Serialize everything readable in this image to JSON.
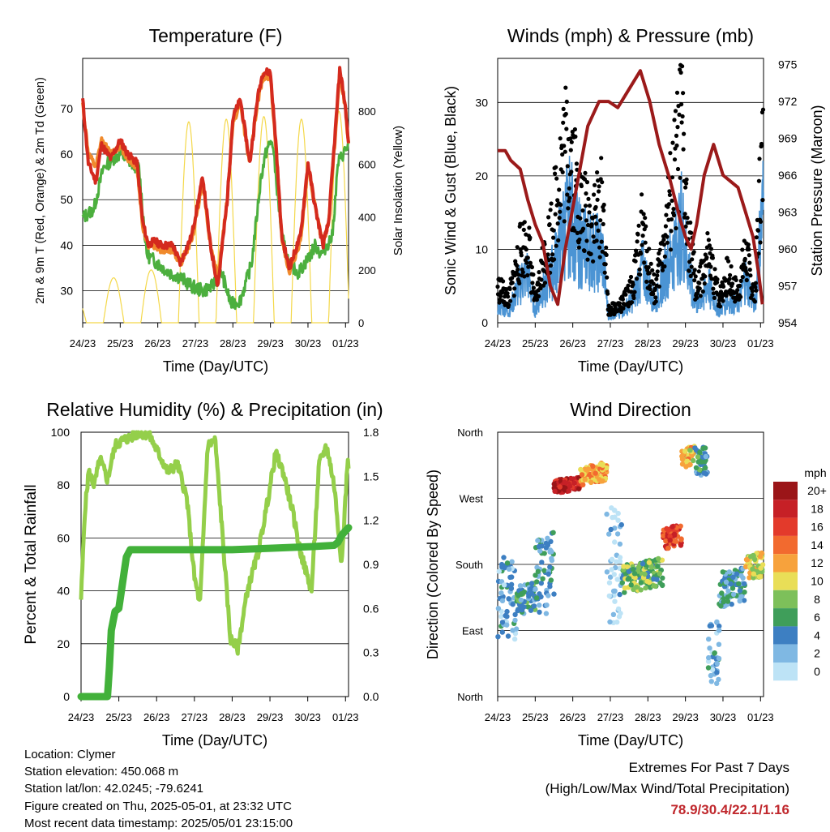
{
  "colors": {
    "temp_2m": "#d42a1e",
    "temp_9m": "#f08a2c",
    "dewpoint": "#4caf3e",
    "solar": "#f4d84a",
    "sonic_wind": "#4b94d4",
    "gust": "#000000",
    "pressure": "#9b1a1a",
    "rh": "#94cf4a",
    "precip": "#42b13a"
  },
  "wind_speed_legend": {
    "title": "mph",
    "labels": [
      "20+",
      "18",
      "16",
      "14",
      "12",
      "10",
      "8",
      "6",
      "4",
      "2",
      "0"
    ],
    "colors": [
      "#9b1518",
      "#c62026",
      "#e33a2b",
      "#f26a2f",
      "#f7a23c",
      "#e9de57",
      "#7dc05a",
      "#3f9e5a",
      "#3d7fc2",
      "#7fb8e3",
      "#bde3f6"
    ]
  },
  "chart_data": [
    {
      "type": "line",
      "title": "Temperature (F)",
      "xlabel": "Time (Day/UTC)",
      "ylabel": "2m & 9m T (Red, Orange) & 2m Td (Green)",
      "y2label": "Solar Insolation (Yellow)",
      "x_ticks": [
        "24/23",
        "25/23",
        "26/23",
        "27/23",
        "28/23",
        "29/23",
        "30/23",
        "01/23"
      ],
      "ylim": [
        23,
        81
      ],
      "y_ticks": [
        30,
        40,
        50,
        60,
        70
      ],
      "y2lim": [
        0,
        1000
      ],
      "y2_ticks": [
        0,
        200,
        400,
        600,
        800
      ],
      "grid": true,
      "series": [
        {
          "name": "2m T",
          "x": [
            0,
            0.15,
            0.35,
            0.5,
            0.75,
            1,
            1.2,
            1.45,
            1.6,
            1.75,
            1.9,
            2.1,
            2.4,
            2.6,
            2.9,
            3.2,
            3.4,
            3.6,
            3.85,
            4,
            4.2,
            4.45,
            4.65,
            4.8,
            5,
            5.15,
            5.3,
            5.5,
            5.8,
            6,
            6.2,
            6.4,
            6.55,
            6.7,
            6.85,
            7,
            7.08
          ],
          "values": [
            72,
            58,
            54,
            62,
            59,
            63,
            60,
            58,
            45,
            40,
            41,
            40,
            40,
            36,
            42,
            55,
            40,
            31,
            50,
            68,
            72,
            58,
            72,
            78,
            78,
            62,
            42,
            35,
            42,
            58,
            48,
            40,
            45,
            62,
            79,
            70,
            62
          ]
        },
        {
          "name": "9m T",
          "x": [
            0,
            0.15,
            0.35,
            0.5,
            0.75,
            1,
            1.2,
            1.45,
            1.6,
            1.75,
            1.9,
            2.1,
            2.4,
            2.6,
            2.9,
            3.2,
            3.4,
            3.6,
            3.85,
            4,
            4.2,
            4.45,
            4.65,
            4.8,
            5,
            5.15,
            5.3,
            5.5,
            5.8,
            6,
            6.2,
            6.4,
            6.55,
            6.7,
            6.85,
            7,
            7.08
          ],
          "values": [
            71,
            60,
            57,
            63,
            60,
            62,
            59,
            57,
            44,
            40,
            40,
            39,
            39,
            36,
            41,
            54,
            40,
            33,
            50,
            67,
            71,
            58,
            71,
            77,
            77,
            61,
            42,
            34,
            41,
            57,
            48,
            40,
            45,
            61,
            78,
            70,
            62
          ]
        },
        {
          "name": "2m Td",
          "x": [
            0,
            0.3,
            0.55,
            0.8,
            1,
            1.3,
            1.5,
            1.7,
            2,
            2.3,
            2.6,
            2.9,
            3.2,
            3.45,
            3.7,
            3.95,
            4.2,
            4.5,
            4.75,
            4.9,
            5.05,
            5.3,
            5.5,
            5.75,
            6,
            6.2,
            6.35,
            6.5,
            6.65,
            6.8,
            7,
            7.08
          ],
          "values": [
            46,
            48,
            57,
            59,
            60,
            58,
            57,
            38,
            36,
            34,
            33,
            31,
            30,
            31,
            34,
            27,
            28,
            36,
            55,
            61,
            63,
            42,
            36,
            34,
            37,
            40,
            38,
            40,
            42,
            58,
            61,
            62
          ]
        }
      ]
    },
    {
      "type": "line",
      "title": "Winds (mph) & Pressure (mb)",
      "xlabel": "Time (Day/UTC)",
      "ylabel": "Sonic Wind & Gust (Blue, Black)",
      "y2label": "Station Pressure (Maroon)",
      "x_ticks": [
        "24/23",
        "25/23",
        "26/23",
        "27/23",
        "28/23",
        "29/23",
        "30/23",
        "01/23"
      ],
      "ylim": [
        0,
        36
      ],
      "y_ticks": [
        0,
        10,
        20,
        30
      ],
      "y2lim": [
        954,
        975.5
      ],
      "y2_ticks": [
        954,
        957,
        960,
        963,
        966,
        969,
        972,
        975
      ],
      "grid": true,
      "series": [
        {
          "name": "Sonic Wind",
          "x": [
            0,
            0.3,
            0.6,
            0.8,
            1,
            1.2,
            1.45,
            1.7,
            1.9,
            2.2,
            2.5,
            2.8,
            2.95,
            3.3,
            3.6,
            3.85,
            4,
            4.2,
            4.4,
            4.7,
            4.9,
            5,
            5.3,
            5.6,
            5.9,
            6.1,
            6.4,
            6.6,
            6.85,
            7,
            7.08
          ],
          "values": [
            3,
            2,
            7,
            9,
            2,
            6,
            9,
            15,
            20,
            14,
            13,
            12,
            1,
            2,
            4,
            10,
            7,
            3,
            8,
            13,
            18,
            13,
            3,
            7,
            2,
            4,
            3,
            8,
            3,
            16,
            21
          ]
        },
        {
          "name": "Gust",
          "x": [
            0,
            0.3,
            0.6,
            0.8,
            1,
            1.2,
            1.45,
            1.7,
            1.9,
            2.2,
            2.5,
            2.8,
            2.95,
            3.3,
            3.6,
            3.85,
            4,
            4.2,
            4.4,
            4.7,
            4.9,
            5,
            5.3,
            5.6,
            5.9,
            6.1,
            6.4,
            6.6,
            6.85,
            7,
            7.08
          ],
          "values": [
            6,
            4,
            12,
            14,
            3,
            10,
            16,
            27,
            31,
            19,
            17,
            20,
            2,
            3,
            6,
            16,
            10,
            5,
            13,
            24,
            33,
            20,
            5,
            11,
            4,
            8,
            5,
            12,
            4,
            25,
            29
          ]
        },
        {
          "name": "Pressure",
          "x": [
            0,
            0.2,
            0.35,
            0.6,
            0.8,
            1,
            1.2,
            1.4,
            1.6,
            1.8,
            2.1,
            2.4,
            2.7,
            2.95,
            3.2,
            3.5,
            3.8,
            4.05,
            4.3,
            4.6,
            4.85,
            5,
            5.15,
            5.3,
            5.5,
            5.75,
            6,
            6.2,
            6.4,
            6.6,
            6.8,
            6.95,
            7.05
          ],
          "values": [
            968,
            968,
            967.2,
            966.5,
            964,
            962,
            960.5,
            957,
            955.5,
            960,
            965,
            970,
            972,
            972,
            971.5,
            973,
            974.5,
            972,
            968.5,
            965.5,
            962.5,
            961,
            960,
            962,
            966,
            968.5,
            966,
            965.5,
            965,
            963,
            961,
            958,
            955.5
          ]
        }
      ]
    },
    {
      "type": "line",
      "title": "Relative Humidity (%) & Precipitation (in)",
      "xlabel": "Time (Day/UTC)",
      "ylabel": "Percent & Total Rainfall",
      "x_ticks": [
        "24/23",
        "25/23",
        "26/23",
        "27/23",
        "28/23",
        "29/23",
        "30/23",
        "01/23"
      ],
      "ylim": [
        0,
        100
      ],
      "y_ticks": [
        0,
        20,
        40,
        60,
        80,
        100
      ],
      "y2lim": [
        0,
        1.8
      ],
      "y2_ticks": [
        "0.0",
        "0.3",
        "0.6",
        "0.9",
        "1.2",
        "1.5",
        "1.8"
      ],
      "grid": true,
      "series": [
        {
          "name": "RH",
          "x": [
            0,
            0.1,
            0.2,
            0.35,
            0.5,
            0.7,
            0.9,
            1.1,
            1.3,
            1.55,
            1.8,
            2.05,
            2.3,
            2.55,
            2.8,
            3,
            3.15,
            3.35,
            3.55,
            3.75,
            3.95,
            4.15,
            4.4,
            4.7,
            4.95,
            5.15,
            5.35,
            5.6,
            5.8,
            6.1,
            6.3,
            6.5,
            6.7,
            6.9,
            7.05
          ],
          "values": [
            37,
            70,
            85,
            80,
            90,
            82,
            95,
            97,
            98,
            100,
            99,
            92,
            85,
            88,
            75,
            45,
            35,
            95,
            97,
            60,
            22,
            18,
            40,
            55,
            75,
            92,
            85,
            70,
            55,
            40,
            88,
            95,
            80,
            50,
            88
          ]
        },
        {
          "name": "Total Rainfall",
          "x": [
            0,
            0.7,
            0.75,
            0.8,
            0.9,
            1,
            1.2,
            1.3,
            1.5,
            2,
            3,
            4,
            5,
            6,
            6.7,
            6.8,
            6.9,
            7.08
          ],
          "values": [
            0,
            0,
            0.2,
            0.45,
            0.58,
            0.6,
            0.95,
            1.0,
            1.0,
            1.0,
            1.0,
            1.0,
            1.01,
            1.02,
            1.03,
            1.05,
            1.1,
            1.15
          ]
        }
      ]
    },
    {
      "type": "scatter",
      "title": "Wind Direction",
      "xlabel": "Time (Day/UTC)",
      "ylabel": "Direction (Colored By Speed)",
      "x_ticks": [
        "24/23",
        "25/23",
        "26/23",
        "27/23",
        "28/23",
        "29/23",
        "30/23",
        "01/23"
      ],
      "y_ticks": [
        "North",
        "East",
        "South",
        "West",
        "North"
      ],
      "ylim": [
        0,
        360
      ],
      "grid": true,
      "clusters": [
        {
          "x_start": 0,
          "x_end": 0.5,
          "dir_center": 130,
          "dir_spread": 120,
          "speed": 3
        },
        {
          "x_start": 0.5,
          "x_end": 1.0,
          "dir_center": 130,
          "dir_spread": 40,
          "speed": 5
        },
        {
          "x_start": 1.0,
          "x_end": 1.5,
          "dir_center": 165,
          "dir_spread": 110,
          "speed": 4
        },
        {
          "x_start": 1.5,
          "x_end": 2.2,
          "dir_center": 285,
          "dir_spread": 18,
          "speed": 18
        },
        {
          "x_start": 2.2,
          "x_end": 2.9,
          "dir_center": 300,
          "dir_spread": 25,
          "speed": 12
        },
        {
          "x_start": 2.9,
          "x_end": 3.3,
          "dir_center": 180,
          "dir_spread": 170,
          "speed": 1
        },
        {
          "x_start": 3.3,
          "x_end": 4.4,
          "dir_center": 160,
          "dir_spread": 40,
          "speed": 7
        },
        {
          "x_start": 4.4,
          "x_end": 4.9,
          "dir_center": 215,
          "dir_spread": 30,
          "speed": 16
        },
        {
          "x_start": 4.9,
          "x_end": 5.25,
          "dir_center": 322,
          "dir_spread": 25,
          "speed": 11
        },
        {
          "x_start": 5.25,
          "x_end": 5.6,
          "dir_center": 320,
          "dir_spread": 40,
          "speed": 5
        },
        {
          "x_start": 5.6,
          "x_end": 5.9,
          "dir_center": 60,
          "dir_spread": 90,
          "speed": 3
        },
        {
          "x_start": 5.9,
          "x_end": 6.6,
          "dir_center": 145,
          "dir_spread": 50,
          "speed": 4
        },
        {
          "x_start": 6.6,
          "x_end": 7.08,
          "dir_center": 175,
          "dir_spread": 35,
          "speed": 10
        }
      ]
    }
  ],
  "info": {
    "location": "Location: Clymer",
    "elevation": "Station elevation: 450.068 m",
    "latlon": "Station lat/lon: 42.0245; -79.6241",
    "created": "Figure created on Thu, 2025-05-01, at 23:32 UTC",
    "recent": "Most recent data timestamp: 2025/05/01 23:15:00"
  },
  "extremes": {
    "title": "Extremes For Past 7 Days",
    "subtitle": "(High/Low/Max Wind/Total Precipitation)",
    "values": "78.9/30.4/22.1/1.16"
  }
}
